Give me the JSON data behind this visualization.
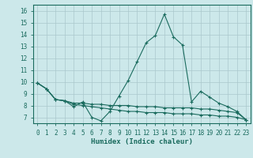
{
  "title": "",
  "xlabel": "Humidex (Indice chaleur)",
  "background_color": "#cce8ea",
  "line_color": "#1a6b5e",
  "grid_color": "#aac8cc",
  "xlim": [
    -0.5,
    23.5
  ],
  "ylim": [
    6.5,
    16.5
  ],
  "xticks": [
    0,
    1,
    2,
    3,
    4,
    5,
    6,
    7,
    8,
    9,
    10,
    11,
    12,
    13,
    14,
    15,
    16,
    17,
    18,
    19,
    20,
    21,
    22,
    23
  ],
  "yticks": [
    7,
    8,
    9,
    10,
    11,
    12,
    13,
    14,
    15,
    16
  ],
  "series1_x": [
    0,
    1,
    2,
    3,
    4,
    5,
    6,
    7,
    8,
    9,
    10,
    11,
    12,
    13,
    14,
    15,
    16,
    17,
    18,
    19,
    20,
    21,
    22,
    23
  ],
  "series1_y": [
    9.9,
    9.4,
    8.5,
    8.4,
    7.9,
    8.3,
    7.0,
    6.7,
    7.5,
    8.8,
    10.1,
    11.7,
    13.3,
    13.9,
    15.7,
    13.8,
    13.1,
    8.3,
    9.2,
    8.7,
    8.2,
    7.9,
    7.5,
    6.8
  ],
  "series2_x": [
    0,
    1,
    2,
    3,
    4,
    5,
    6,
    7,
    8,
    9,
    10,
    11,
    12,
    13,
    14,
    15,
    16,
    17,
    18,
    19,
    20,
    21,
    22,
    23
  ],
  "series2_y": [
    9.9,
    9.4,
    8.5,
    8.4,
    8.2,
    8.2,
    8.1,
    8.1,
    8.0,
    8.0,
    8.0,
    7.9,
    7.9,
    7.9,
    7.8,
    7.8,
    7.8,
    7.8,
    7.7,
    7.7,
    7.6,
    7.5,
    7.4,
    6.8
  ],
  "series3_x": [
    0,
    1,
    2,
    3,
    4,
    5,
    6,
    7,
    8,
    9,
    10,
    11,
    12,
    13,
    14,
    15,
    16,
    17,
    18,
    19,
    20,
    21,
    22,
    23
  ],
  "series3_y": [
    9.9,
    9.4,
    8.5,
    8.4,
    8.1,
    8.0,
    7.9,
    7.8,
    7.7,
    7.6,
    7.5,
    7.5,
    7.4,
    7.4,
    7.4,
    7.3,
    7.3,
    7.3,
    7.2,
    7.2,
    7.1,
    7.1,
    7.0,
    6.8
  ],
  "marker": "+",
  "markersize": 3.5,
  "linewidth": 0.8,
  "tick_fontsize": 5.5,
  "xlabel_fontsize": 6.5
}
